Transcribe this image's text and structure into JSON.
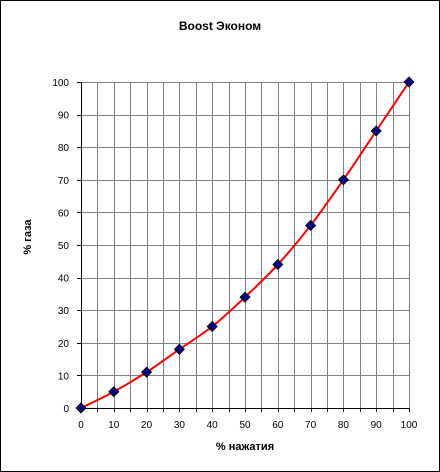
{
  "chart_data": {
    "type": "line",
    "title": "Boost Эконом",
    "xlabel": "% нажатия",
    "ylabel": "% газа",
    "xlim": [
      0,
      100
    ],
    "ylim": [
      0,
      100
    ],
    "x_ticks": [
      "0",
      "10",
      "20",
      "30",
      "40",
      "50",
      "60",
      "70",
      "80",
      "90",
      "100"
    ],
    "y_ticks": [
      "0",
      "10",
      "20",
      "30",
      "40",
      "50",
      "60",
      "70",
      "80",
      "90",
      "100"
    ],
    "grid": true,
    "legend": "none",
    "series": [
      {
        "x": [
          0,
          10,
          20,
          30,
          40,
          50,
          60,
          70,
          80,
          90,
          100
        ],
        "values": [
          0,
          5,
          11,
          18,
          25,
          34,
          44,
          56,
          70,
          85,
          100
        ],
        "line_color": "#ff0000",
        "marker_color": "#000080",
        "marker": "diamond"
      }
    ],
    "border_color": "#000000",
    "grid_color": "#808080"
  }
}
